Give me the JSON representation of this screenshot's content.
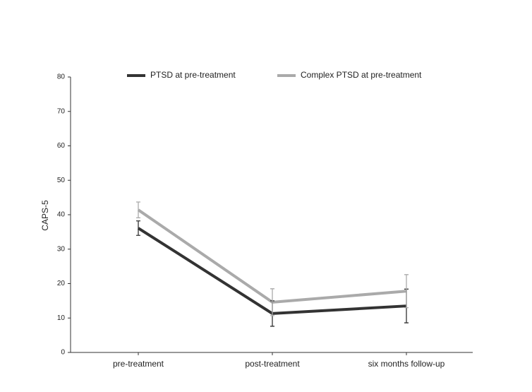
{
  "chart_data": {
    "type": "line",
    "y_label": "CAPS-5",
    "categories": [
      "pre-treatment",
      "post-treatment",
      "six months follow-up"
    ],
    "series": [
      {
        "name": "PTSD at pre-treatment",
        "color": "#333333",
        "values": [
          36.1,
          11.3,
          13.5
        ],
        "errors": [
          2.1,
          3.7,
          4.9
        ]
      },
      {
        "name": "Complex PTSD at pre-treatment",
        "color": "#aaaaaa",
        "values": [
          41.4,
          14.6,
          17.8
        ],
        "errors": [
          2.3,
          3.9,
          4.8
        ]
      }
    ],
    "ylim": [
      0,
      80
    ],
    "yticks": [
      0,
      10,
      20,
      30,
      40,
      50,
      60,
      70,
      80
    ],
    "legend": "top"
  }
}
